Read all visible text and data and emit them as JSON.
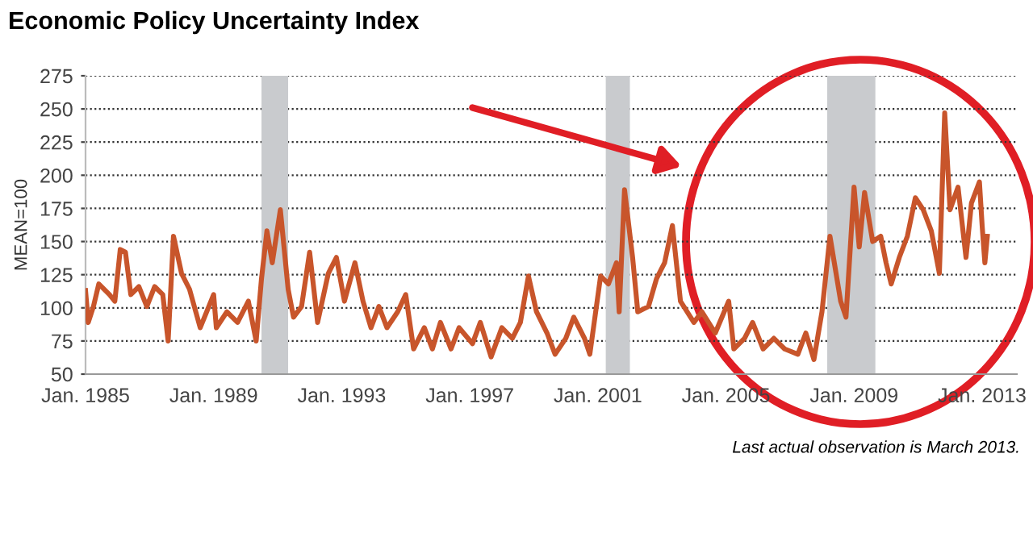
{
  "chart_data": {
    "type": "line",
    "title": "Economic Policy Uncertainty Index",
    "ylabel": "MEAN=100",
    "x": [
      "1985-01",
      "1985-02",
      "1985-04",
      "1985-06",
      "1985-10",
      "1985-12",
      "1986-02",
      "1986-04",
      "1986-06",
      "1986-09",
      "1986-12",
      "1987-03",
      "1987-06",
      "1987-08",
      "1987-10",
      "1988-01",
      "1988-04",
      "1988-08",
      "1989-01",
      "1989-02",
      "1989-06",
      "1989-10",
      "1990-02",
      "1990-05",
      "1990-07",
      "1990-09",
      "1990-11",
      "1991-02",
      "1991-05",
      "1991-07",
      "1991-10",
      "1992-01",
      "1992-04",
      "1992-08",
      "1992-11",
      "1993-02",
      "1993-06",
      "1993-09",
      "1993-12",
      "1994-03",
      "1994-06",
      "1994-10",
      "1995-01",
      "1995-04",
      "1995-08",
      "1995-11",
      "1996-02",
      "1996-06",
      "1996-09",
      "1997-02",
      "1997-05",
      "1997-09",
      "1998-01",
      "1998-05",
      "1998-08",
      "1998-11",
      "1999-02",
      "1999-06",
      "1999-09",
      "2000-01",
      "2000-04",
      "2000-08",
      "2000-10",
      "2001-02",
      "2001-05",
      "2001-08",
      "2001-09",
      "2001-11",
      "2002-02",
      "2002-04",
      "2002-08",
      "2002-11",
      "2003-02",
      "2003-05",
      "2003-08",
      "2004-01",
      "2004-04",
      "2004-09",
      "2005-02",
      "2005-04",
      "2005-08",
      "2005-11",
      "2006-03",
      "2006-07",
      "2006-11",
      "2007-04",
      "2007-07",
      "2007-10",
      "2008-01",
      "2008-04",
      "2008-08",
      "2008-10",
      "2009-01",
      "2009-03",
      "2009-05",
      "2009-08",
      "2009-11",
      "2010-01",
      "2010-03",
      "2010-06",
      "2010-09",
      "2010-12",
      "2011-03",
      "2011-06",
      "2011-09",
      "2011-11",
      "2012-01",
      "2012-04",
      "2012-07",
      "2012-09",
      "2012-12",
      "2013-01",
      "2013-02",
      "2013-03"
    ],
    "values": [
      113,
      89,
      101,
      118,
      110,
      105,
      144,
      142,
      110,
      116,
      101,
      116,
      110,
      75,
      154,
      126,
      114,
      85,
      110,
      85,
      97,
      89,
      105,
      75,
      122,
      158,
      134,
      174,
      114,
      93,
      101,
      142,
      89,
      126,
      138,
      105,
      134,
      105,
      85,
      101,
      85,
      97,
      110,
      69,
      85,
      69,
      89,
      69,
      85,
      73,
      89,
      63,
      85,
      77,
      89,
      124,
      97,
      81,
      65,
      77,
      93,
      77,
      65,
      124,
      118,
      134,
      97,
      189,
      138,
      97,
      101,
      122,
      134,
      162,
      105,
      89,
      97,
      81,
      105,
      69,
      77,
      89,
      69,
      77,
      69,
      65,
      81,
      61,
      97,
      154,
      105,
      93,
      191,
      146,
      187,
      150,
      154,
      134,
      118,
      138,
      154,
      183,
      174,
      158,
      126,
      247,
      174,
      191,
      138,
      179,
      195,
      162,
      134,
      154
    ],
    "color": "#c8552b",
    "xlim": [
      "1985-01",
      "2014-02"
    ],
    "xticks": [
      {
        "value": "1985-01",
        "label": "Jan. 1985"
      },
      {
        "value": "1989-01",
        "label": "Jan. 1989"
      },
      {
        "value": "1993-01",
        "label": "Jan. 1993"
      },
      {
        "value": "1997-01",
        "label": "Jan. 1997"
      },
      {
        "value": "2001-01",
        "label": "Jan. 2001"
      },
      {
        "value": "2005-01",
        "label": "Jan. 2005"
      },
      {
        "value": "2009-01",
        "label": "Jan. 2009"
      },
      {
        "value": "2013-01",
        "label": "Jan. 2013"
      }
    ],
    "ylim": [
      50,
      275
    ],
    "yticks": [
      50,
      75,
      100,
      125,
      150,
      175,
      200,
      225,
      250,
      275
    ],
    "grid": "y",
    "bands": [
      {
        "axis": "x",
        "from": "1990-07",
        "to": "1991-05",
        "color": "#c9cbce"
      },
      {
        "axis": "x",
        "from": "2001-04",
        "to": "2002-01",
        "color": "#c9cbce"
      },
      {
        "axis": "x",
        "from": "2008-03",
        "to": "2009-09",
        "color": "#c9cbce"
      }
    ],
    "annotations": [
      "Last actual observation is March 2013."
    ]
  }
}
